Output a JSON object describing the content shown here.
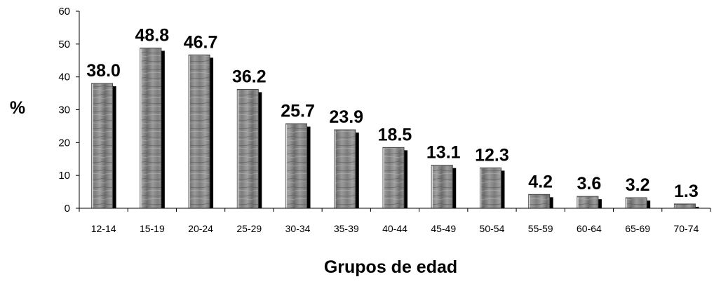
{
  "chart_data": {
    "type": "bar",
    "title": "",
    "xlabel": "Grupos de edad",
    "ylabel": "%",
    "ylim": [
      0,
      60
    ],
    "yticks": [
      0,
      10,
      20,
      30,
      40,
      50,
      60
    ],
    "grid": false,
    "categories": [
      "12-14",
      "15-19",
      "20-24",
      "25-29",
      "30-34",
      "35-39",
      "40-44",
      "45-49",
      "50-54",
      "55-59",
      "60-64",
      "65-69",
      "70-74"
    ],
    "values": [
      38.0,
      48.8,
      46.7,
      36.2,
      25.7,
      23.9,
      18.5,
      13.1,
      12.3,
      4.2,
      3.6,
      3.2,
      1.3
    ],
    "data_labels": [
      "38.0",
      "48.8",
      "46.7",
      "36.2",
      "25.7",
      "23.9",
      "18.5",
      "13.1",
      "12.3",
      "4.2",
      "3.6",
      "3.2",
      "1.3"
    ],
    "colors": {
      "bar_fill": "#8c8c8c",
      "bar_shadow": "#000000",
      "axis": "#000000"
    }
  }
}
